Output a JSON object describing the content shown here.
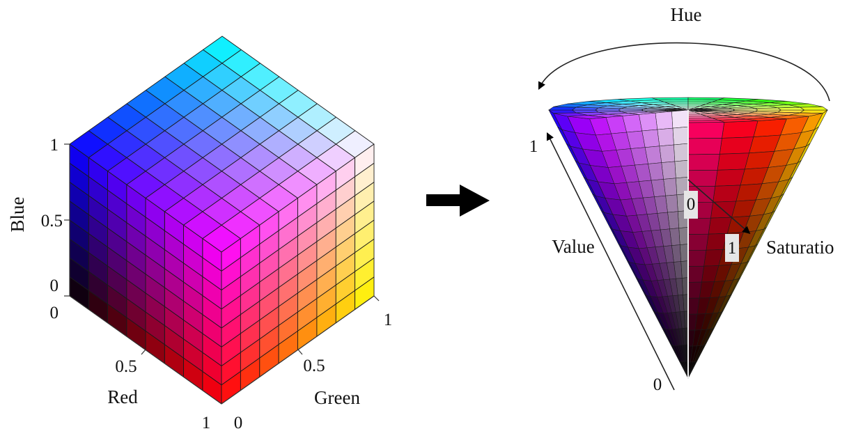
{
  "rgb_cube": {
    "axes": {
      "blue": {
        "label": "Blue",
        "ticks": [
          "0",
          "0.5",
          "1"
        ]
      },
      "red": {
        "label": "Red",
        "ticks": [
          "0",
          "0.5",
          "1"
        ]
      },
      "green": {
        "label": "Green",
        "ticks": [
          "0",
          "0.5",
          "1"
        ]
      }
    },
    "grid_divisions": 8,
    "corner_colors": {
      "black": "#000000",
      "red": "#ff0000",
      "green": "#00ff00",
      "blue": "#0000ff",
      "magenta": "#ff00ff",
      "yellow": "#ffff00",
      "cyan": "#00ffff",
      "white": "#ffffff"
    }
  },
  "arrow": {
    "icon": "right-arrow-icon",
    "color": "#000000"
  },
  "hsv_cone": {
    "hue_label": "Hue",
    "value_label": "Value",
    "value_ticks": [
      "0",
      "1"
    ],
    "saturation_label": "Saturatio",
    "saturation_ticks": [
      "0",
      "1"
    ],
    "hue_sectors": 24,
    "radial_rings": 6,
    "value_bands": 16
  }
}
